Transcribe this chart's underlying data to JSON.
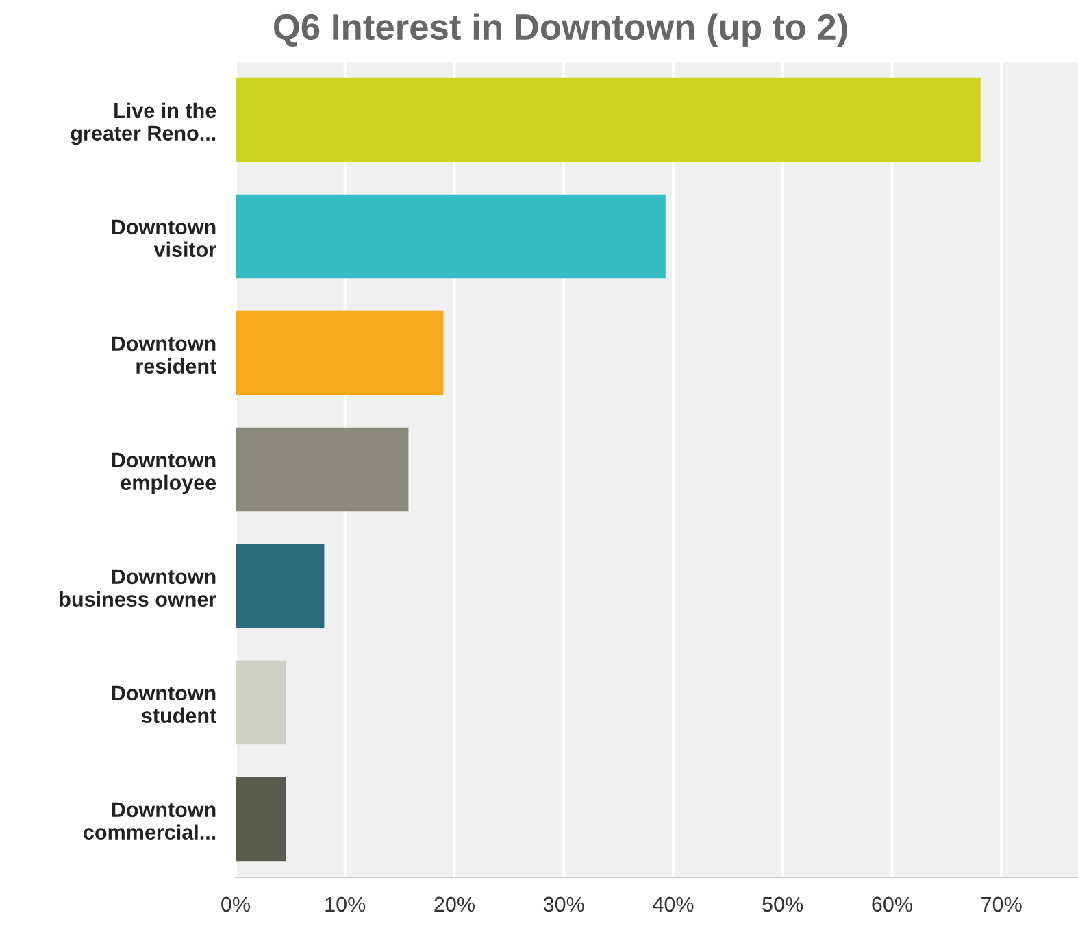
{
  "chart_data": {
    "type": "bar",
    "orientation": "horizontal",
    "title": "Q6 Interest in Downtown (up to 2)",
    "categories": [
      "Live in the\ngreater Reno...",
      "Downtown\nvisitor",
      "Downtown\nresident",
      "Downtown\nemployee",
      "Downtown\nbusiness owner",
      "Downtown\nstudent",
      "Downtown\ncommercial..."
    ],
    "values": [
      68.1,
      39.3,
      19.0,
      15.8,
      8.1,
      4.6,
      4.6
    ],
    "colors": [
      "#cdd321",
      "#35bcc2",
      "#f9a91c",
      "#8b8a7c",
      "#2c6b7d",
      "#cfcfc2",
      "#5b5b4b"
    ],
    "xlim": [
      0,
      77
    ],
    "xticks": [
      {
        "value": 0,
        "label": "0%"
      },
      {
        "value": 10,
        "label": "10%"
      },
      {
        "value": 20,
        "label": "20%"
      },
      {
        "value": 30,
        "label": "30%"
      },
      {
        "value": 40,
        "label": "40%"
      },
      {
        "value": 50,
        "label": "50%"
      },
      {
        "value": 60,
        "label": "60%"
      },
      {
        "value": 70,
        "label": "70%"
      }
    ],
    "grid": "x"
  }
}
